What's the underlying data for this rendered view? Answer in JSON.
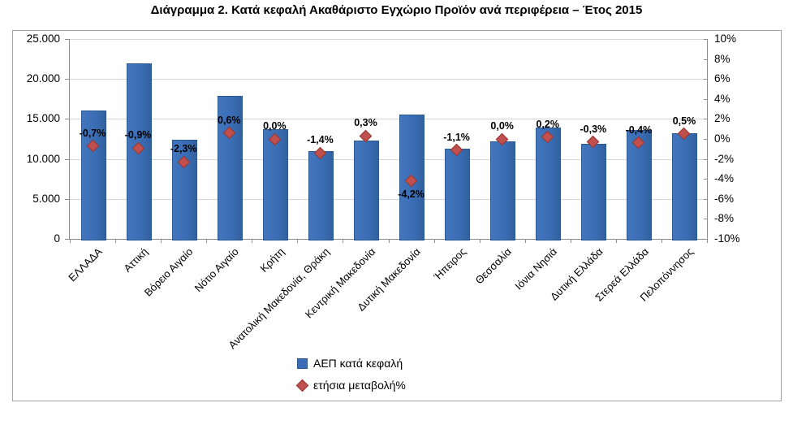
{
  "title": "Διάγραμμα 2. Κατά κεφαλή Ακαθάριστο Εγχώριο Προϊόν ανά περιφέρεια – Έτος 2015",
  "legend": {
    "series1_label": "ΑΕΠ κατά κεφαλή",
    "series2_label": "ετήσια μεταβολή%"
  },
  "colors": {
    "bar_fill": "#3a6db5",
    "bar_border": "#2c5791",
    "marker_fill": "#c0504d",
    "gridline": "#d6d6d6",
    "axis": "#8c8c8c"
  },
  "left_axis": {
    "tick_labels": [
      "25.000",
      "20.000",
      "15.000",
      "10.000",
      "5.000",
      "0"
    ]
  },
  "right_axis": {
    "tick_labels": [
      "10%",
      "8%",
      "6%",
      "4%",
      "2%",
      "0%",
      "-2%",
      "-4%",
      "-6%",
      "-8%",
      "-10%"
    ]
  },
  "chart_data": {
    "type": "bar",
    "title": "Διάγραμμα 2. Κατά κεφαλή Ακαθάριστο Εγχώριο Προϊόν ανά περιφέρεια – Έτος 2015",
    "categories": [
      "ΕΛΛΑΔΑ",
      "Αττική",
      "Βόρειο Αιγαίο",
      "Νότιο Αιγαίο",
      "Κρήτη",
      "Ανατολική Μακεδονία, Θράκη",
      "Κεντρική Μακεδονία",
      "Δυτική Μακεδονία",
      "Ήπειρος",
      "Θεσσαλία",
      "Ιόνια Νησιά",
      "Δυτική Ελλάδα",
      "Στερεά Ελλάδα",
      "Πελοπόννησος"
    ],
    "series": [
      {
        "name": "ΑΕΠ κατά κεφαλή",
        "type": "bar",
        "axis": "left",
        "values": [
          16100,
          22000,
          12400,
          17900,
          13700,
          11000,
          12300,
          15500,
          11300,
          12200,
          13900,
          11900,
          13600,
          13200
        ]
      },
      {
        "name": "ετήσια μεταβολή%",
        "type": "scatter",
        "axis": "right",
        "values": [
          -0.7,
          -0.9,
          -2.3,
          0.6,
          0.0,
          -1.4,
          0.3,
          -4.2,
          -1.1,
          0.0,
          0.2,
          -0.3,
          -0.4,
          0.5
        ],
        "labels": [
          "-0,7%",
          "-0,9%",
          "-2,3%",
          "0,6%",
          "0,0%",
          "-1,4%",
          "0,3%",
          "-4,2%",
          "-1,1%",
          "0,0%",
          "0,2%",
          "-0,3%",
          "-0,4%",
          "0,5%"
        ],
        "label_placement": [
          "above",
          "above",
          "above",
          "above",
          "above",
          "above",
          "above",
          "below",
          "above",
          "above",
          "above",
          "above",
          "above",
          "above"
        ]
      }
    ],
    "left_ylim": [
      0,
      25000
    ],
    "right_ylim": [
      -10,
      10
    ],
    "grid": true,
    "legend_position": "bottom"
  }
}
